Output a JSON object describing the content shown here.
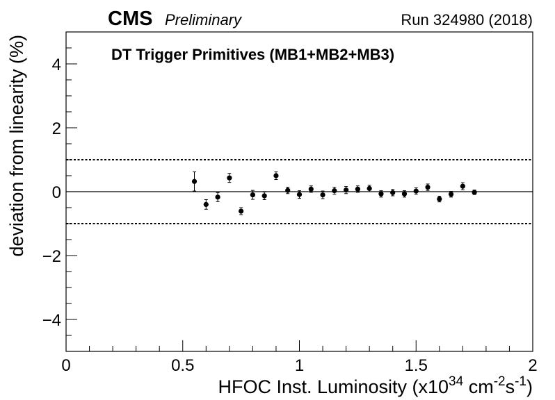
{
  "header": {
    "experiment": "CMS",
    "status": "Preliminary",
    "run": "Run 324980 (2018)"
  },
  "chart_data": {
    "type": "scatter",
    "title": "DT Trigger Primitives (MB1+MB2+MB3)",
    "xlabel": {
      "prefix": "HFOC Inst. Luminosity (x10",
      "exp1": "34",
      "mid1": " cm",
      "exp2": "-2",
      "mid2": "s",
      "exp3": "-1",
      "suffix": ")"
    },
    "ylabel": "deviation from linearity (%)",
    "xlim": [
      0,
      2
    ],
    "ylim": [
      -5,
      5
    ],
    "xticks": [
      0,
      0.5,
      1,
      1.5,
      2
    ],
    "xtick_labels": [
      "0",
      "0.5",
      "1",
      "1.5",
      "2"
    ],
    "yticks": [
      -4,
      -2,
      0,
      2,
      4
    ],
    "ytick_labels": [
      "−4",
      "−2",
      "0",
      "2",
      "4"
    ],
    "reference_lines": [
      {
        "y": 1,
        "style": "dotted"
      },
      {
        "y": 0,
        "style": "solid"
      },
      {
        "y": -1,
        "style": "dotted"
      }
    ],
    "series": [
      {
        "marker": "filled-circle",
        "color": "#000000",
        "x": [
          0.55,
          0.6,
          0.65,
          0.7,
          0.75,
          0.8,
          0.85,
          0.9,
          0.95,
          1.0,
          1.05,
          1.1,
          1.15,
          1.2,
          1.25,
          1.3,
          1.35,
          1.4,
          1.45,
          1.5,
          1.55,
          1.6,
          1.65,
          1.7,
          1.75
        ],
        "y": [
          0.32,
          -0.4,
          -0.17,
          0.43,
          -0.61,
          -0.1,
          -0.13,
          0.5,
          0.04,
          -0.09,
          0.08,
          -0.1,
          0.03,
          0.05,
          0.08,
          0.1,
          -0.07,
          -0.03,
          -0.07,
          0.02,
          0.14,
          -0.23,
          -0.08,
          0.17,
          -0.02
        ],
        "yerr": [
          0.3,
          0.15,
          0.14,
          0.14,
          0.11,
          0.14,
          0.12,
          0.12,
          0.1,
          0.12,
          0.1,
          0.12,
          0.11,
          0.11,
          0.1,
          0.1,
          0.1,
          0.1,
          0.1,
          0.1,
          0.1,
          0.09,
          0.09,
          0.11,
          0.07
        ]
      }
    ]
  }
}
